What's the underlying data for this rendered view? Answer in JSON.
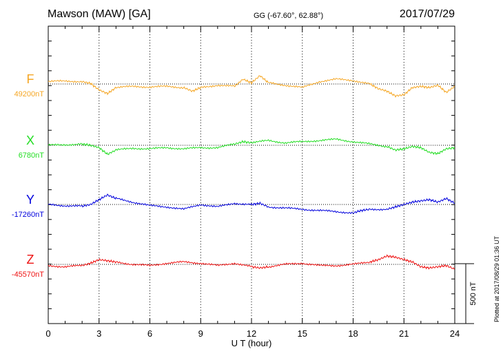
{
  "header": {
    "station": "Mawson (MAW)  [GA]",
    "coords": "GG (-67.60°,  62.88°)",
    "date": "2017/07/29"
  },
  "footer": {
    "plotted": "Plotted at 2017/08/29 01:36 UT"
  },
  "chart_data": {
    "type": "line",
    "xlabel": "U T (hour)",
    "xlim": [
      0,
      24
    ],
    "xticks": [
      0,
      3,
      6,
      9,
      12,
      15,
      18,
      21,
      24
    ],
    "xtick_labels": [
      "0",
      "3",
      "6",
      "9",
      "12",
      "15",
      "18",
      "21",
      "24"
    ],
    "grid": "vertical dotted at 3-hour intervals",
    "scale_bar": {
      "label": "500 nT",
      "value_nT": 500
    },
    "series": [
      {
        "name": "F",
        "baseline_label": "49200nT",
        "baseline_nT": 49200,
        "color": "#f5a623",
        "x": [
          0,
          1,
          2,
          2.5,
          3,
          3.5,
          4,
          5,
          6,
          7,
          8,
          8.5,
          9,
          10,
          11,
          11.5,
          12,
          12.5,
          13,
          14,
          15,
          16,
          17,
          18,
          19,
          19.5,
          20,
          20.5,
          21,
          21.5,
          22,
          22.5,
          23,
          23.5,
          24
        ],
        "y": [
          20,
          25,
          20,
          5,
          -50,
          -80,
          -30,
          -20,
          -25,
          -20,
          -30,
          -60,
          -30,
          -10,
          -20,
          40,
          10,
          70,
          10,
          -10,
          -30,
          20,
          40,
          30,
          0,
          -40,
          -60,
          -100,
          -90,
          -30,
          -20,
          -30,
          -10,
          -70,
          -20
        ]
      },
      {
        "name": "X",
        "baseline_label": "6780nT",
        "baseline_nT": 6780,
        "color": "#22dd22",
        "x": [
          0,
          1,
          2,
          2.5,
          3,
          3.5,
          4,
          5,
          6,
          7,
          8,
          9,
          10,
          11,
          11.5,
          12,
          13,
          14,
          15,
          16,
          17,
          18,
          19,
          20,
          20.5,
          21,
          21.5,
          22,
          22.5,
          23,
          23.5,
          24
        ],
        "y": [
          0,
          5,
          10,
          0,
          -20,
          -75,
          -40,
          -25,
          -30,
          -20,
          -30,
          -20,
          -20,
          10,
          30,
          20,
          40,
          20,
          30,
          40,
          50,
          30,
          10,
          -10,
          -40,
          -30,
          -10,
          -20,
          -60,
          -70,
          -30,
          -20
        ]
      },
      {
        "name": "Y",
        "baseline_label": "-17260nT",
        "baseline_nT": -17260,
        "color": "#0000dd",
        "x": [
          0,
          1,
          2,
          2.5,
          3,
          3.5,
          4,
          5,
          6,
          7,
          8,
          9,
          10,
          11,
          12,
          12.5,
          13,
          14,
          15,
          16,
          17,
          18,
          18.5,
          19,
          20,
          20.5,
          21,
          21.5,
          22,
          22.5,
          23,
          23.5,
          24
        ],
        "y": [
          0,
          -10,
          -15,
          0,
          40,
          80,
          50,
          20,
          -10,
          -20,
          -40,
          0,
          -20,
          10,
          0,
          10,
          -20,
          -30,
          -40,
          -50,
          -60,
          -70,
          -50,
          -40,
          -40,
          -20,
          0,
          20,
          30,
          40,
          20,
          50,
          10
        ]
      },
      {
        "name": "Z",
        "baseline_label": "-45570nT",
        "baseline_nT": -45570,
        "color": "#ee1111",
        "x": [
          0,
          1,
          2,
          2.5,
          3,
          3.5,
          4,
          5,
          6,
          7,
          8,
          9,
          10,
          11,
          12,
          12.5,
          13,
          14,
          15,
          16,
          17,
          18,
          19,
          19.5,
          20,
          20.5,
          21,
          21.5,
          22,
          22.5,
          23,
          23.5,
          24
        ],
        "y": [
          -10,
          -20,
          -10,
          10,
          40,
          30,
          20,
          0,
          -10,
          10,
          20,
          10,
          -10,
          10,
          -20,
          -30,
          -20,
          0,
          10,
          -10,
          -10,
          0,
          20,
          40,
          70,
          60,
          40,
          20,
          -20,
          -30,
          -20,
          -10,
          -40
        ]
      }
    ]
  }
}
